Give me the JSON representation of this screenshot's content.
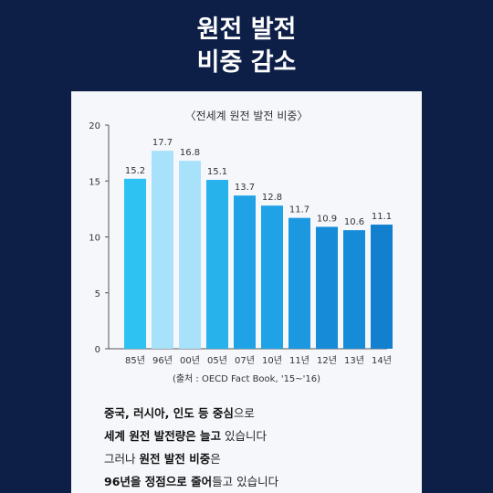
{
  "header": {
    "title_line1": "원전 발전",
    "title_line2": "비중 감소"
  },
  "chart_data": {
    "type": "bar",
    "title": "〈전세계 원전 발전 비중〉",
    "categories": [
      "85년",
      "96년",
      "00년",
      "05년",
      "07년",
      "10년",
      "11년",
      "12년",
      "13년",
      "14년"
    ],
    "values": [
      15.2,
      17.7,
      16.8,
      15.1,
      13.7,
      12.8,
      11.7,
      10.9,
      10.6,
      11.1
    ],
    "value_labels": [
      "15.2",
      "17.7",
      "16.8",
      "15.1",
      "13.7",
      "12.8",
      "11.7",
      "10.9",
      "10.6",
      "11.1"
    ],
    "ylim": [
      0,
      20
    ],
    "yticks": [
      0,
      5,
      10,
      15,
      20
    ],
    "ytick_labels": [
      "0",
      "5",
      "10",
      "15",
      "20"
    ],
    "bar_colors": [
      "#2ec2f2",
      "#a8e1fa",
      "#a8e1fa",
      "#27b2ec",
      "#1fa3e6",
      "#1fa3e6",
      "#1b98e0",
      "#168bd8",
      "#168bd8",
      "#137fcf"
    ],
    "source": "(출처 : OECD Fact Book, '15~'16)"
  },
  "body_text": {
    "line1": {
      "bold": "중국, 러시아, 인도 등 중심",
      "normal": "으로"
    },
    "line2": {
      "bold": "세계 원전 발전량은 늘고",
      "normal": " 있습니다"
    },
    "line3": {
      "normal": "그러나 ",
      "bold": "원전 발전 비중",
      "normal2": "은"
    },
    "line4": {
      "bold": "96년을 정점으로 줄어",
      "normal": "들고 있습니다"
    }
  }
}
